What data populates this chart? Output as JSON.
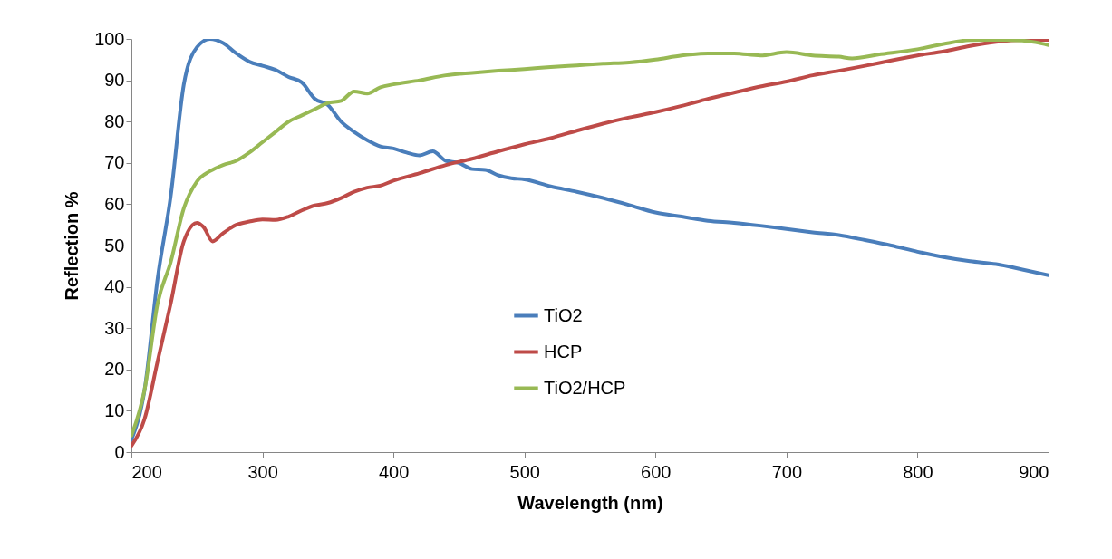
{
  "chart_data": {
    "type": "line",
    "xlabel": "Wavelength (nm)",
    "ylabel": "Reflection %",
    "xlim": [
      200,
      900
    ],
    "xticks": [
      200,
      300,
      400,
      500,
      600,
      700,
      800,
      900
    ],
    "ylim": [
      0,
      100
    ],
    "yticks": [
      0,
      10,
      20,
      30,
      40,
      50,
      60,
      70,
      80,
      90,
      100
    ],
    "grid": false,
    "legend": "center",
    "marker": "none",
    "line_style": "solid",
    "series": [
      {
        "name": "TiO2",
        "color": "#4a7ebb",
        "x": [
          200,
          210,
          220,
          230,
          240,
          250,
          260,
          270,
          280,
          290,
          300,
          310,
          320,
          330,
          340,
          350,
          360,
          370,
          380,
          390,
          400,
          410,
          420,
          430,
          440,
          450,
          460,
          470,
          480,
          490,
          500,
          520,
          540,
          560,
          580,
          600,
          620,
          640,
          660,
          680,
          700,
          720,
          740,
          760,
          780,
          800,
          820,
          840,
          860,
          880,
          900
        ],
        "values": [
          3,
          15,
          42,
          62,
          89,
          98,
          100,
          99,
          96.5,
          94.5,
          93.5,
          92.5,
          90.8,
          89.5,
          85.5,
          84,
          80,
          77.5,
          75.5,
          74,
          73.5,
          72.5,
          71.8,
          72.8,
          70.5,
          70,
          68.5,
          68.3,
          67,
          66.3,
          66,
          64.3,
          63,
          61.5,
          59.8,
          58,
          57,
          56,
          55.5,
          54.8,
          54,
          53.2,
          52.5,
          51.3,
          50,
          48.5,
          47.2,
          46.2,
          45.5,
          44.2,
          42.8
        ]
      },
      {
        "name": "HCP",
        "color": "#be4b48",
        "x": [
          200,
          210,
          220,
          230,
          240,
          250,
          255,
          262,
          270,
          280,
          290,
          300,
          310,
          320,
          330,
          340,
          350,
          360,
          370,
          380,
          390,
          400,
          420,
          440,
          460,
          480,
          500,
          520,
          540,
          560,
          580,
          600,
          620,
          640,
          660,
          680,
          700,
          720,
          740,
          760,
          780,
          800,
          820,
          840,
          860,
          880,
          900
        ],
        "values": [
          1.5,
          8,
          22,
          36,
          51,
          55.5,
          54.5,
          51,
          53,
          55,
          55.8,
          56.3,
          56.2,
          57,
          58.5,
          59.7,
          60.3,
          61.5,
          63,
          64,
          64.5,
          65.7,
          67.5,
          69.5,
          71,
          72.8,
          74.5,
          76,
          77.8,
          79.5,
          81,
          82.3,
          83.8,
          85.5,
          87,
          88.5,
          89.7,
          91.2,
          92.3,
          93.5,
          94.8,
          96,
          97,
          98.3,
          99.3,
          99.8,
          99.8
        ]
      },
      {
        "name": "TiO2/HCP",
        "color": "#98b954",
        "x": [
          200,
          210,
          220,
          230,
          240,
          250,
          260,
          270,
          280,
          290,
          300,
          310,
          320,
          330,
          340,
          350,
          360,
          370,
          380,
          390,
          400,
          420,
          440,
          460,
          480,
          500,
          520,
          540,
          560,
          580,
          600,
          620,
          640,
          660,
          680,
          700,
          720,
          740,
          750,
          770,
          800,
          820,
          840,
          860,
          880,
          890,
          900
        ],
        "values": [
          4,
          15,
          36,
          46,
          59,
          65.5,
          68,
          69.5,
          70.5,
          72.5,
          75,
          77.5,
          80,
          81.5,
          83,
          84.5,
          85,
          87.3,
          86.8,
          88.3,
          89,
          90,
          91.2,
          91.8,
          92.3,
          92.7,
          93.2,
          93.6,
          94,
          94.3,
          95,
          96,
          96.5,
          96.5,
          96,
          96.8,
          96,
          95.7,
          95.3,
          96.2,
          97.5,
          98.8,
          99.7,
          99.8,
          99.6,
          99.2,
          98.5
        ]
      }
    ]
  }
}
